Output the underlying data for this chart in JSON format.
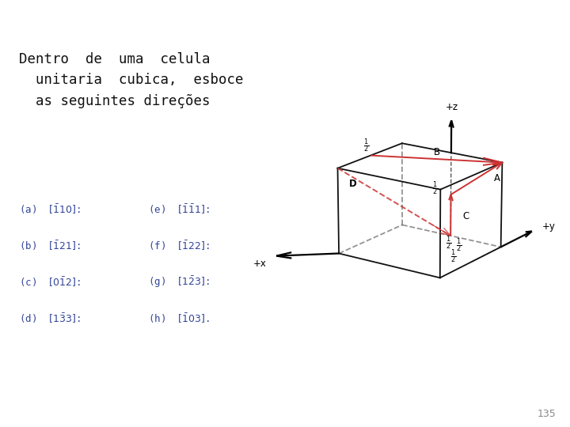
{
  "background_color": "#ffffff",
  "cube_color": "#111111",
  "arrow_color": "#cc3333",
  "text_color": "#111111",
  "label_color": "#334499",
  "page_number": "135",
  "title_line1": "Dentro  de  uma  celula",
  "title_line2": "  unitaria  cubica,  esboce",
  "title_line3": "  as seguintes direções",
  "elev": 18,
  "azim": -55,
  "cube_lw": 1.3,
  "arrow_lw": 1.4
}
